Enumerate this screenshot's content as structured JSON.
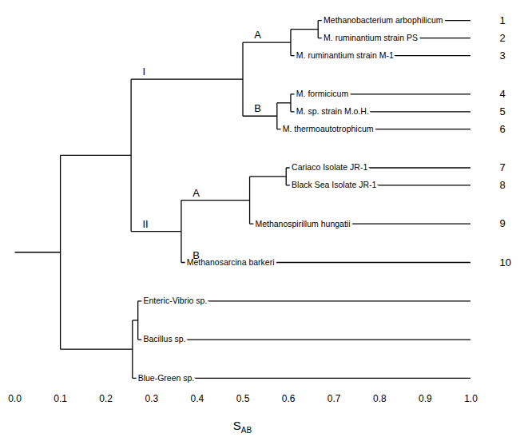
{
  "chart_data": {
    "type": "dendrogram",
    "xlabel": {
      "text": "S",
      "subscript": "AB"
    },
    "xlim": [
      0,
      1
    ],
    "xticks": [
      {
        "value": 0,
        "label": "0.0"
      },
      0.1,
      0.2,
      0.3,
      0.4,
      0.5,
      0.6,
      0.7,
      0.8,
      0.9,
      {
        "value": 1,
        "label": "1.0"
      }
    ],
    "tree": {
      "height": 0.1,
      "children": [
        {
          "height": 0.255,
          "children": [
            {
              "height": 0.5,
              "label": "I",
              "children": [
                {
                  "height": 0.605,
                  "label": "A",
                  "children": [
                    {
                      "height": 0.665,
                      "children": [
                        {
                          "name": "Methanobacterium arbophilicum",
                          "number": 1
                        },
                        {
                          "name": "M. ruminantium strain PS",
                          "number": 2
                        }
                      ]
                    },
                    {
                      "name": "M. ruminantium strain M-1",
                      "number": 3
                    }
                  ]
                },
                {
                  "height": 0.575,
                  "label": "B",
                  "children": [
                    {
                      "height": 0.605,
                      "children": [
                        {
                          "name": "M. formicicum",
                          "number": 4
                        },
                        {
                          "name": "M. sp. strain M.o.H.",
                          "number": 5
                        }
                      ]
                    },
                    {
                      "name": "M. thermoautotrophicum",
                      "number": 6
                    }
                  ]
                }
              ]
            },
            {
              "height": 0.365,
              "label": "II",
              "children": [
                {
                  "height": 0.515,
                  "label": "A",
                  "children": [
                    {
                      "height": 0.595,
                      "children": [
                        {
                          "name": "Cariaco Isolate JR-1",
                          "number": 7
                        },
                        {
                          "name": "Black Sea Isolate JR-1",
                          "number": 8
                        }
                      ]
                    },
                    {
                      "name": "Methanospirillum hungatii",
                      "number": 9
                    }
                  ]
                },
                {
                  "name": "Methanosarcina barkeri",
                  "number": 10,
                  "label": "B"
                }
              ]
            }
          ]
        },
        {
          "height": 0.258,
          "children": [
            {
              "height": 0.27,
              "children": [
                {
                  "name": "Enteric-Vibrio sp."
                },
                {
                  "name": "Bacillus sp."
                }
              ]
            },
            {
              "name": "Blue-Green sp."
            }
          ]
        }
      ]
    }
  }
}
